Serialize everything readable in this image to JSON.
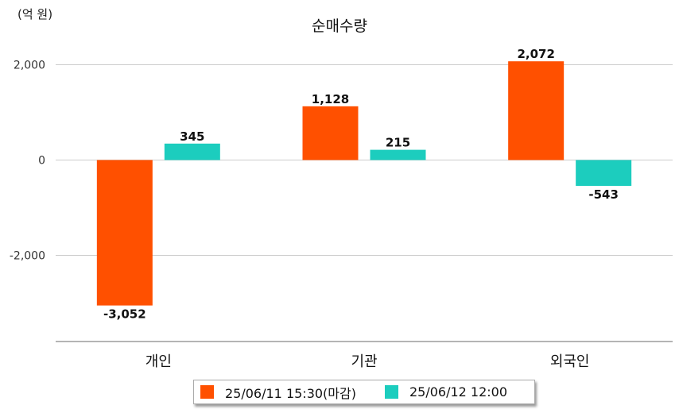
{
  "chart_data": {
    "type": "bar",
    "title": "순매수량",
    "unit_label": "(억 원)",
    "categories": [
      "개인",
      "기관",
      "외국인"
    ],
    "series": [
      {
        "name": "25/06/11 15:30(마감)",
        "color": "#ff5000",
        "values": [
          -3052,
          1128,
          2072
        ],
        "labels": [
          "-3,052",
          "1,128",
          "2,072"
        ]
      },
      {
        "name": "25/06/12 12:00",
        "color": "#1ccdbe",
        "values": [
          345,
          215,
          -543
        ],
        "labels": [
          "345",
          "215",
          "-543"
        ]
      }
    ],
    "yticks": [
      2000,
      0,
      -2000
    ],
    "ytick_labels": [
      "2,000",
      "0",
      "-2,000"
    ],
    "ylim": [
      -3800,
      2000
    ],
    "grid": true,
    "legend_position": "bottom"
  }
}
